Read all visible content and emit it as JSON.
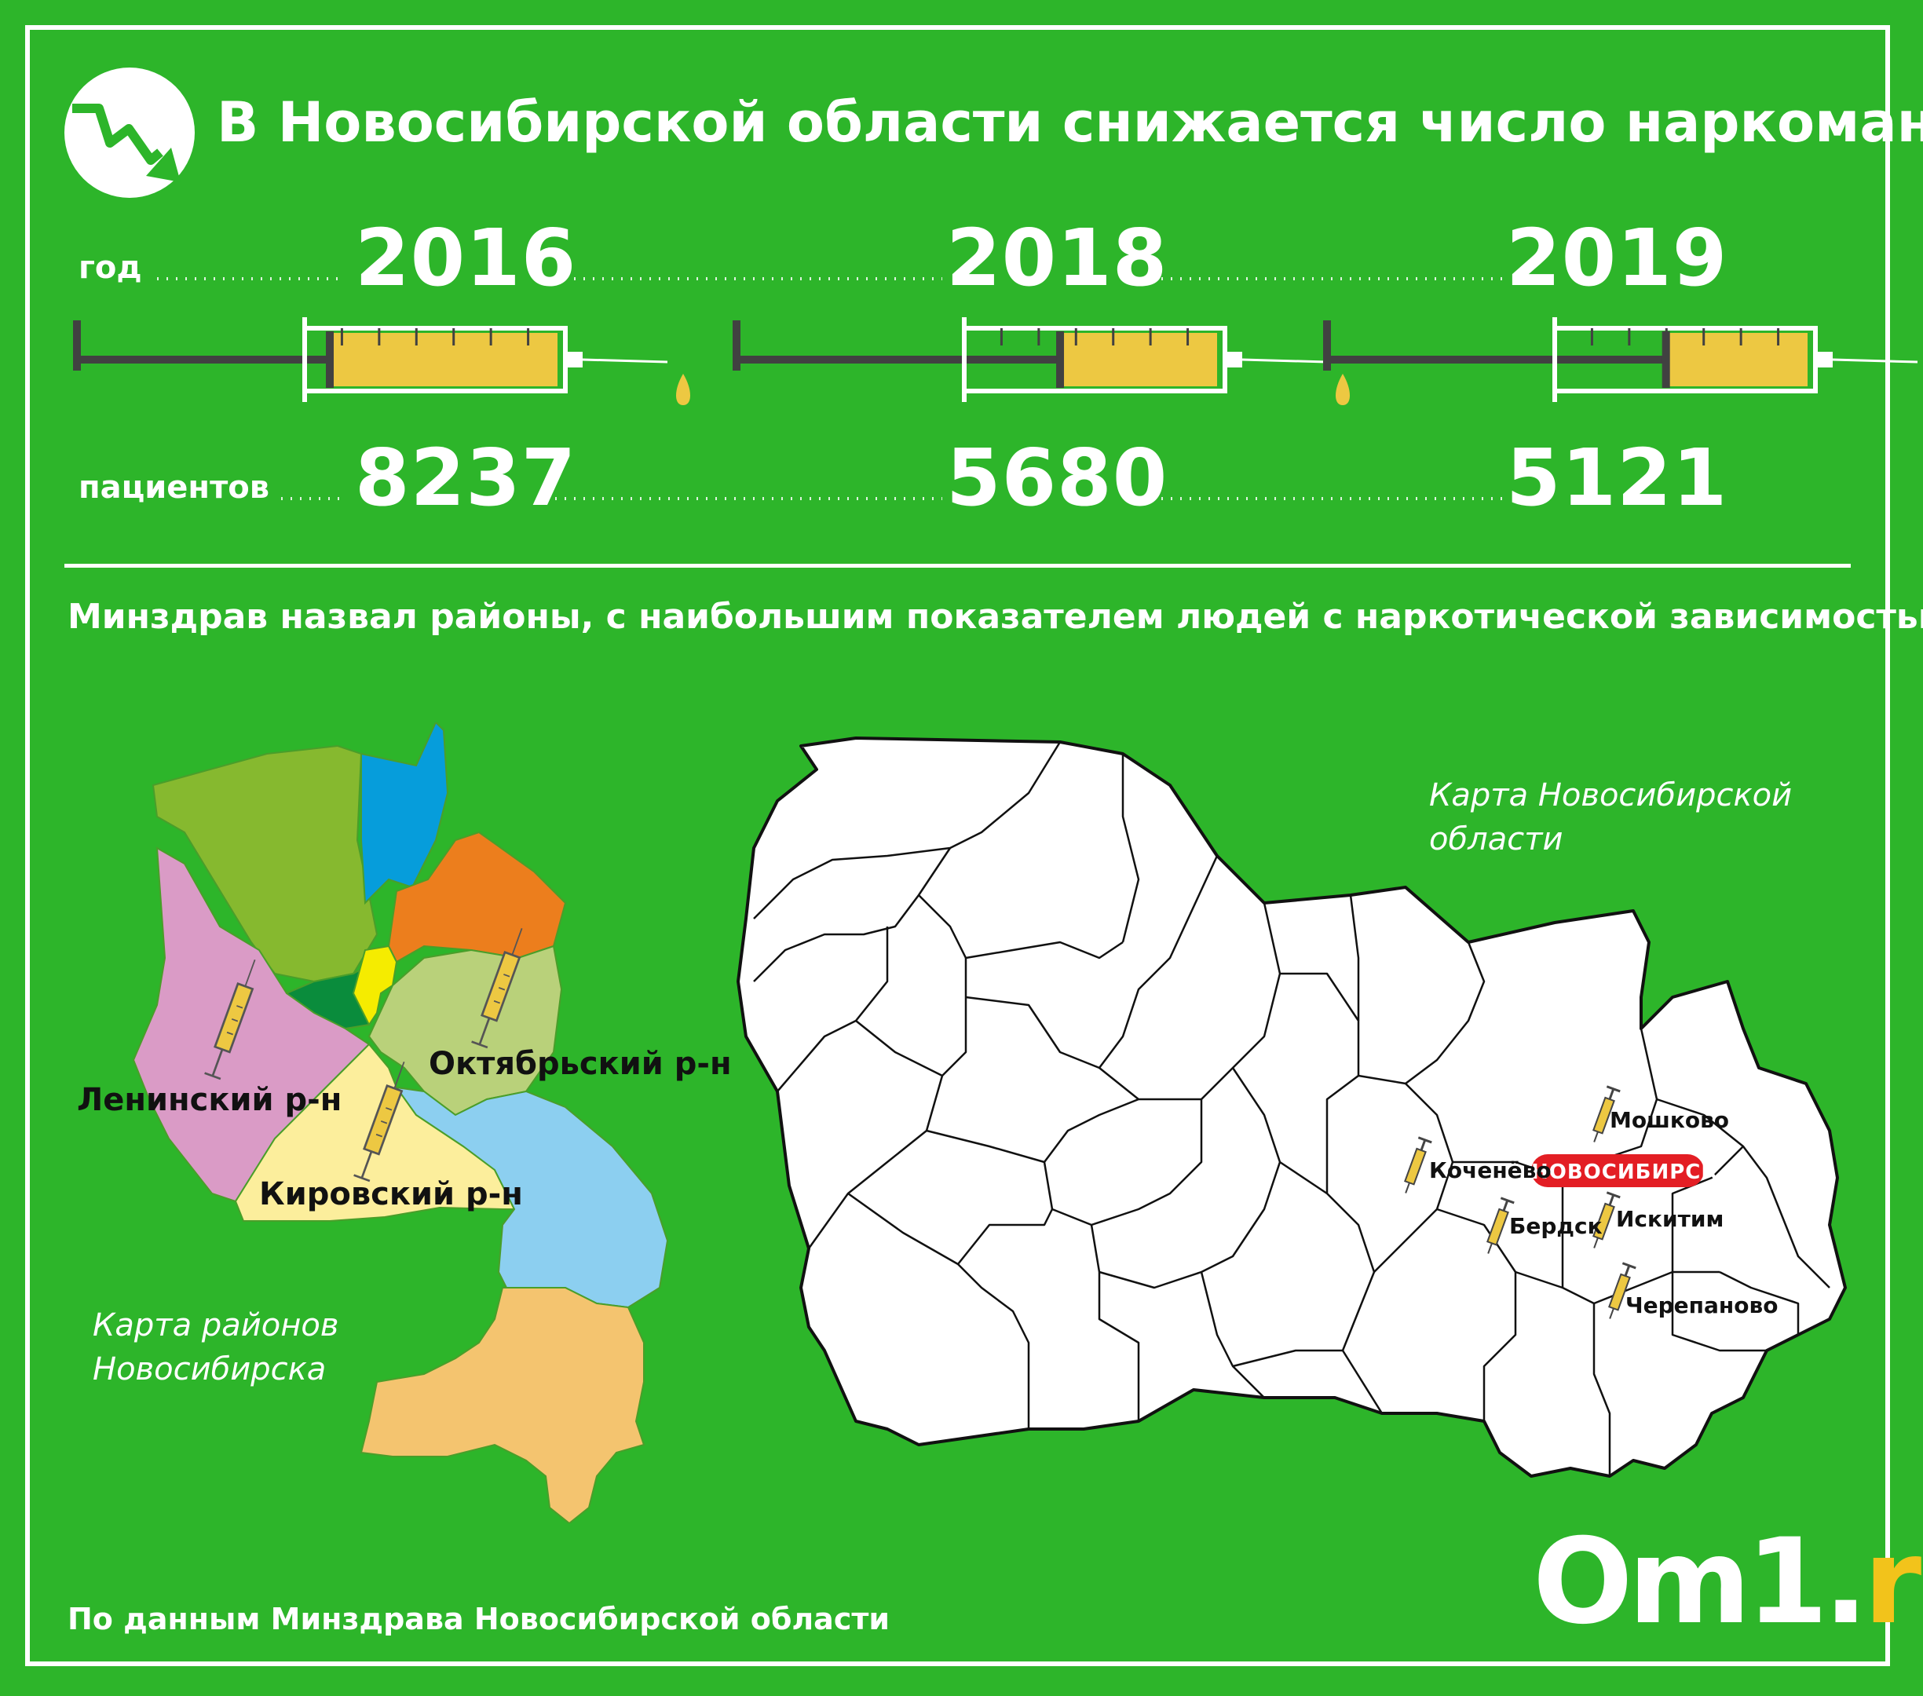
{
  "title": "В Новосибирской области снижается число наркоманов",
  "labels": {
    "year": "год",
    "patients": "пациентов"
  },
  "stats": [
    {
      "year": "2016",
      "patients": "8237"
    },
    {
      "year": "2018",
      "patients": "5680"
    },
    {
      "year": "2019",
      "patients": "5121"
    }
  ],
  "subtitle": "Минздрав назвал районы, с наибольшим показателем людей с наркотической зависимостью",
  "city_map": {
    "caption": "Карта районов Новосибирска",
    "districts": {
      "leninsky": "Ленинский р-н",
      "oktyabrsky": "Октябрьский р-н",
      "kirovsky": "Кировский р-н"
    },
    "colors": {
      "olive": "#86b92f",
      "blue": "#069ddb",
      "orange": "#ec7e1d",
      "dark_green": "#0a8c3c",
      "yellow": "#f5ec00",
      "pink": "#da9bc6",
      "light_olive": "#b9d17a",
      "pale_yellow": "#fcee9c",
      "light_blue": "#8ccff0",
      "tan": "#f4c46f"
    }
  },
  "region_map": {
    "caption": "Карта Новосибирской области",
    "capital": "НОВОСИБИРСК",
    "towns": {
      "moshkovo": "Мошково",
      "kochenevo": "Коченёво",
      "berdsk": "Бердск",
      "iskitim": "Искитим",
      "cherepanovo": "Черепаново"
    }
  },
  "footer": "По данным Минздрава Новосибирской области",
  "logo": {
    "main": "Om1.",
    "suffix": "ru"
  },
  "colors": {
    "background": "#2db52a",
    "syringe_fill": "#edc842",
    "plunger": "#414141",
    "capital_badge": "#e31e24"
  }
}
